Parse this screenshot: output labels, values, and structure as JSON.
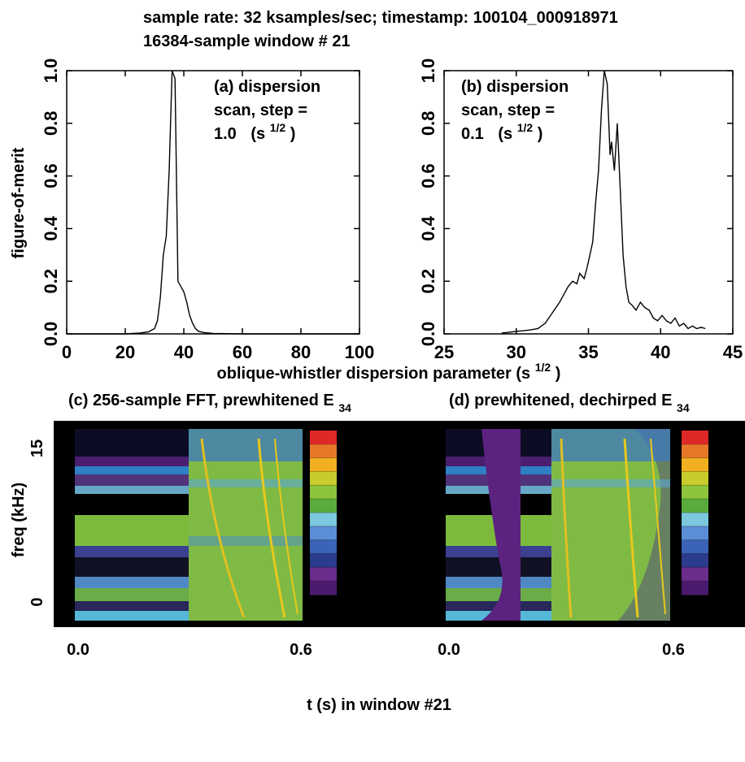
{
  "header": {
    "line1": "sample rate: 32 ksamples/sec; timestamp: 100104_000918971",
    "line2": "16384-sample window # 21"
  },
  "shared_labels": {
    "ylabel_top": "figure-of-merit",
    "xlabel_top_main": "oblique-whistler dispersion parameter (s",
    "xlabel_top_sup": "1/2",
    "xlabel_top_end": ")",
    "ylabel_bottom": "freq (kHz)",
    "xlabel_bottom": "t (s) in window #21"
  },
  "chart_data": [
    {
      "id": "a",
      "type": "line",
      "annotation": {
        "line1": "(a) dispersion",
        "line2": "scan, step =",
        "line3_value": "1.0",
        "line3_unit": "(s",
        "line3_sup": "1/2",
        "line3_close": ")"
      },
      "xlim": [
        0,
        100
      ],
      "ylim": [
        0,
        1
      ],
      "xticks": [
        0,
        20,
        40,
        60,
        80,
        100
      ],
      "yticks": [
        0.0,
        0.2,
        0.4,
        0.6,
        0.8,
        1.0
      ],
      "xtick_labels": [
        "0",
        "20",
        "40",
        "60",
        "80",
        "100"
      ],
      "ytick_labels": [
        "0.0",
        "0.2",
        "0.4",
        "0.6",
        "0.8",
        "1.0"
      ],
      "series": [
        {
          "x": [
            0,
            20,
            25,
            28,
            30,
            31,
            32,
            33,
            34,
            35,
            36,
            37,
            38,
            39,
            40,
            41,
            42,
            43,
            44,
            45,
            47,
            50,
            55,
            60,
            70,
            80,
            100
          ],
          "y": [
            0.0,
            0.0,
            0.003,
            0.008,
            0.02,
            0.05,
            0.14,
            0.3,
            0.37,
            0.62,
            1.0,
            0.97,
            0.2,
            0.18,
            0.16,
            0.12,
            0.07,
            0.04,
            0.02,
            0.01,
            0.005,
            0.002,
            0.001,
            0.0,
            0.0,
            0.0,
            0.0
          ]
        }
      ]
    },
    {
      "id": "b",
      "type": "line",
      "annotation": {
        "line1": "(b) dispersion",
        "line2": "scan, step =",
        "line3_value": "0.1",
        "line3_unit": "(s",
        "line3_sup": "1/2",
        "line3_close": ")"
      },
      "xlim": [
        25,
        45
      ],
      "ylim": [
        0,
        1
      ],
      "xticks": [
        25,
        30,
        35,
        40,
        45
      ],
      "yticks": [
        0.0,
        0.2,
        0.4,
        0.6,
        0.8,
        1.0
      ],
      "xtick_labels": [
        "25",
        "30",
        "35",
        "40",
        "45"
      ],
      "ytick_labels": [
        "0.0",
        "0.2",
        "0.4",
        "0.6",
        "0.8",
        "1.0"
      ],
      "series": [
        {
          "x": [
            29.0,
            29.5,
            30.0,
            30.5,
            31.0,
            31.5,
            32.0,
            32.5,
            33.0,
            33.3,
            33.6,
            33.9,
            34.2,
            34.4,
            34.7,
            34.9,
            35.1,
            35.3,
            35.5,
            35.7,
            35.9,
            36.1,
            36.3,
            36.5,
            36.6,
            36.8,
            37.0,
            37.2,
            37.4,
            37.6,
            37.8,
            38.0,
            38.3,
            38.6,
            38.9,
            39.2,
            39.5,
            39.8,
            40.1,
            40.4,
            40.7,
            41.0,
            41.3,
            41.6,
            41.9,
            42.2,
            42.5,
            42.8,
            43.1
          ],
          "y": [
            0.003,
            0.006,
            0.01,
            0.012,
            0.015,
            0.02,
            0.04,
            0.08,
            0.12,
            0.15,
            0.18,
            0.2,
            0.19,
            0.23,
            0.21,
            0.25,
            0.3,
            0.35,
            0.5,
            0.62,
            0.85,
            1.0,
            0.95,
            0.68,
            0.73,
            0.62,
            0.8,
            0.55,
            0.3,
            0.18,
            0.12,
            0.11,
            0.09,
            0.12,
            0.1,
            0.09,
            0.06,
            0.05,
            0.07,
            0.05,
            0.04,
            0.06,
            0.03,
            0.04,
            0.02,
            0.03,
            0.02,
            0.025,
            0.02
          ]
        }
      ]
    },
    {
      "id": "c",
      "type": "heatmap",
      "title_main": "(c) 256-sample FFT, prewhitened E",
      "title_sub": "34",
      "xlim": [
        0,
        0.6
      ],
      "ylim": [
        0,
        16
      ],
      "xtick_labels": [
        "0.0",
        "0.6"
      ],
      "ytick_labels": [
        "0",
        "15"
      ]
    },
    {
      "id": "d",
      "type": "heatmap",
      "title_main": "(d) prewhitened, dechirped E",
      "title_sub": "34",
      "xlim": [
        0,
        0.6
      ],
      "ylim": [
        0,
        16
      ],
      "xtick_labels": [
        "0.0",
        "0.6"
      ]
    }
  ],
  "palette": [
    "#4a1a6e",
    "#6a2d8c",
    "#2c3c8c",
    "#3b63b8",
    "#5a8ed6",
    "#7cc8dc",
    "#5aac3c",
    "#8cc43c",
    "#c8cc2c",
    "#f0b020",
    "#e67828",
    "#e02828"
  ],
  "colors": {
    "black": "#000000",
    "purple": "#5b237f",
    "blue": "#2d6fb6",
    "cyan": "#50b8d8",
    "green": "#7fba3c",
    "yellow": "#e8c81c"
  }
}
